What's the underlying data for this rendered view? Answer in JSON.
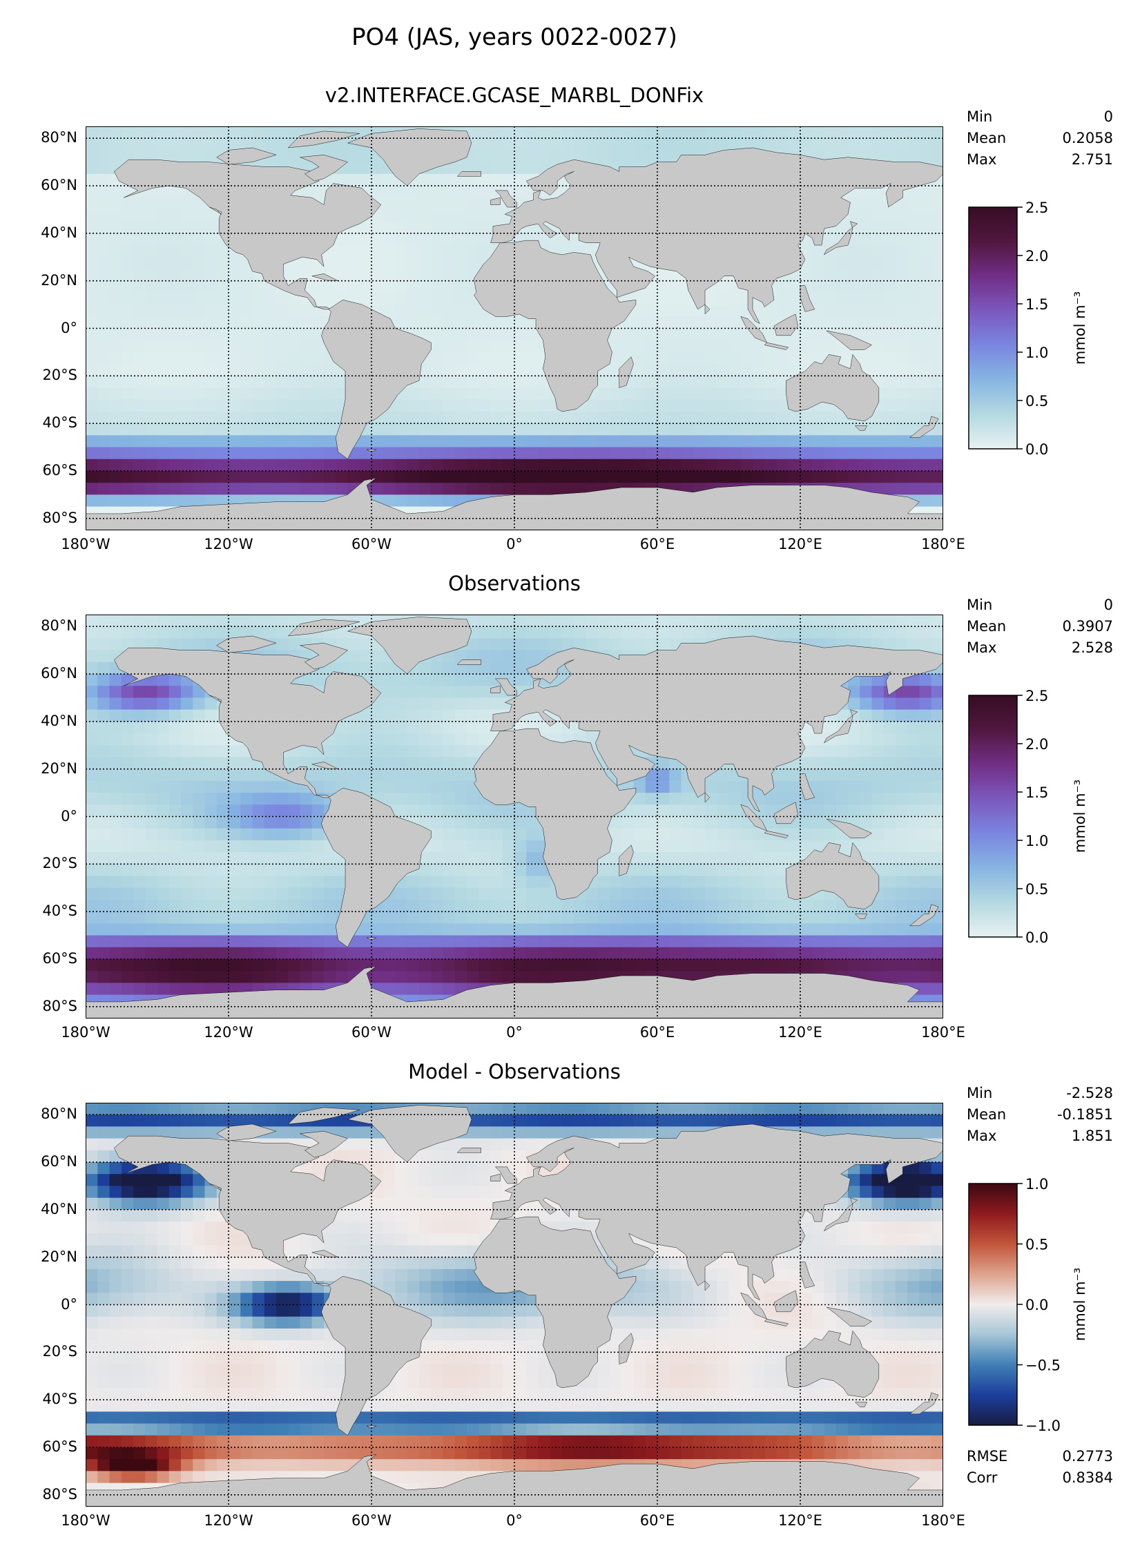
{
  "figure": {
    "title": "PO4 (JAS, years 0022-0027)"
  },
  "chart_data": [
    {
      "type": "heatmap",
      "panel": "model",
      "title": "v2.INTERFACE.GCASE_MARBL_DONFix",
      "x_ticks": [
        "180°W",
        "120°W",
        "60°W",
        "0°",
        "60°E",
        "120°E",
        "180°E"
      ],
      "y_ticks": [
        "80°N",
        "60°N",
        "40°N",
        "20°N",
        "0°",
        "20°S",
        "40°S",
        "60°S",
        "80°S"
      ],
      "xlim": [
        -180,
        180
      ],
      "ylim": [
        -85,
        85
      ],
      "grid": true,
      "colormap": "dense",
      "colorbar": {
        "label": "mmol m⁻³",
        "range": [
          0.0,
          2.5
        ],
        "ticks": [
          "0.0",
          "0.5",
          "1.0",
          "1.5",
          "2.0",
          "2.5"
        ]
      },
      "stats": [
        {
          "label": "Min",
          "value": "0"
        },
        {
          "label": "Mean",
          "value": "0.2058"
        },
        {
          "label": "Max",
          "value": "2.751"
        }
      ]
    },
    {
      "type": "heatmap",
      "panel": "observations",
      "title": "Observations",
      "x_ticks": [
        "180°W",
        "120°W",
        "60°W",
        "0°",
        "60°E",
        "120°E",
        "180°E"
      ],
      "y_ticks": [
        "80°N",
        "60°N",
        "40°N",
        "20°N",
        "0°",
        "20°S",
        "40°S",
        "60°S",
        "80°S"
      ],
      "xlim": [
        -180,
        180
      ],
      "ylim": [
        -85,
        85
      ],
      "grid": true,
      "colormap": "dense",
      "colorbar": {
        "label": "mmol m⁻³",
        "range": [
          0.0,
          2.5
        ],
        "ticks": [
          "0.0",
          "0.5",
          "1.0",
          "1.5",
          "2.0",
          "2.5"
        ]
      },
      "stats": [
        {
          "label": "Min",
          "value": "0"
        },
        {
          "label": "Mean",
          "value": "0.3907"
        },
        {
          "label": "Max",
          "value": "2.528"
        }
      ]
    },
    {
      "type": "heatmap",
      "panel": "difference",
      "title": "Model - Observations",
      "x_ticks": [
        "180°W",
        "120°W",
        "60°W",
        "0°",
        "60°E",
        "120°E",
        "180°E"
      ],
      "y_ticks": [
        "80°N",
        "60°N",
        "40°N",
        "20°N",
        "0°",
        "20°S",
        "40°S",
        "60°S",
        "80°S"
      ],
      "xlim": [
        -180,
        180
      ],
      "ylim": [
        -85,
        85
      ],
      "grid": true,
      "colormap": "balance",
      "colorbar": {
        "label": "mmol m⁻³",
        "range": [
          -1.0,
          1.0
        ],
        "ticks": [
          "−1.0",
          "−0.5",
          "0.0",
          "0.5",
          "1.0"
        ]
      },
      "stats": [
        {
          "label": "Min",
          "value": "-2.528"
        },
        {
          "label": "Mean",
          "value": "-0.1851"
        },
        {
          "label": "Max",
          "value": "1.851"
        }
      ],
      "metrics": [
        {
          "label": "RMSE",
          "value": "0.2773"
        },
        {
          "label": "Corr",
          "value": "0.8384"
        }
      ]
    }
  ],
  "colors": {
    "land": "#c8c8c8",
    "dense": [
      "#e6f1f1",
      "#b4d9e1",
      "#86b5e2",
      "#7a86e0",
      "#7c58bd",
      "#712f86",
      "#52173f",
      "#360d24"
    ],
    "balance": [
      "#181c43",
      "#1c3f9c",
      "#3f7fb6",
      "#a6c6d6",
      "#f1ecec",
      "#dea38c",
      "#c1553a",
      "#8e1a1e",
      "#3c0911"
    ]
  }
}
